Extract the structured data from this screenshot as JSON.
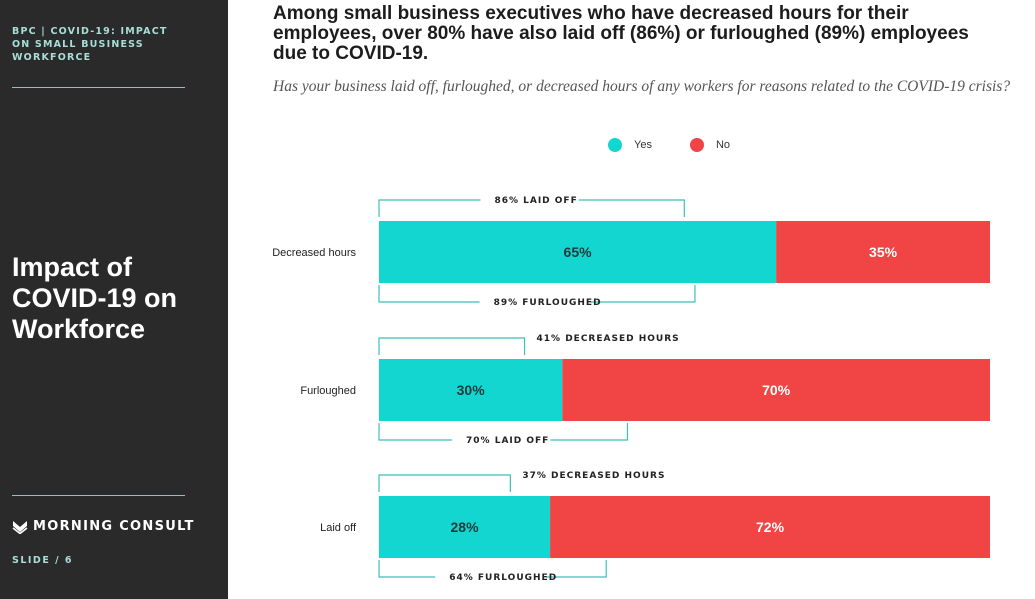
{
  "sidebar": {
    "header": "BPC | COVID-19: IMPACT ON SMALL BUSINESS WORKFORCE",
    "title": "Impact of COVID-19 on Workforce",
    "brand": "MORNING CONSULT",
    "slide": "SLIDE /  6"
  },
  "headline": "Among small business executives who have decreased hours for their employees, over 80% have also laid off (86%) or furloughed (89%) employees due to COVID-19.",
  "subhead": "Has your business laid off, furloughed, or decreased hours of any workers for reasons related to the COVID-19 crisis?",
  "chart_data": {
    "type": "bar",
    "orientation": "horizontal",
    "stacked": true,
    "categories": [
      "Decreased hours",
      "Furloughed",
      "Laid off"
    ],
    "series": [
      {
        "name": "Yes",
        "values": [
          65,
          30,
          28
        ],
        "color": "#12d6cf",
        "label_color": "#1c3a3a"
      },
      {
        "name": "No",
        "values": [
          35,
          70,
          72
        ],
        "color": "#f04445",
        "label_color": "#ffffff"
      }
    ],
    "value_suffix": "%",
    "xlim": [
      0,
      100
    ],
    "legend": {
      "placement": "top-center"
    },
    "annotations": [
      {
        "category": "Decreased hours",
        "position": "above",
        "label": "86% LAID OFF",
        "value": 86
      },
      {
        "category": "Decreased hours",
        "position": "below",
        "label": "89% FURLOUGHED",
        "value": 89
      },
      {
        "category": "Furloughed",
        "position": "above",
        "label": "41% DECREASED HOURS",
        "value": 41
      },
      {
        "category": "Furloughed",
        "position": "below",
        "label": "70% LAID OFF",
        "value": 70
      },
      {
        "category": "Laid off",
        "position": "above",
        "label": "37% DECREASED HOURS",
        "value": 37
      },
      {
        "category": "Laid off",
        "position": "below",
        "label": "64% FURLOUGHED",
        "value": 64
      }
    ],
    "bracket_color": "#3cc0b7"
  },
  "colors": {
    "sidebar_bg": "#2a2a2a",
    "sidebar_accent": "#a9ded8",
    "rule": "#6fd0c8"
  },
  "icons": {
    "brand": "morning-consult-logo-icon"
  }
}
